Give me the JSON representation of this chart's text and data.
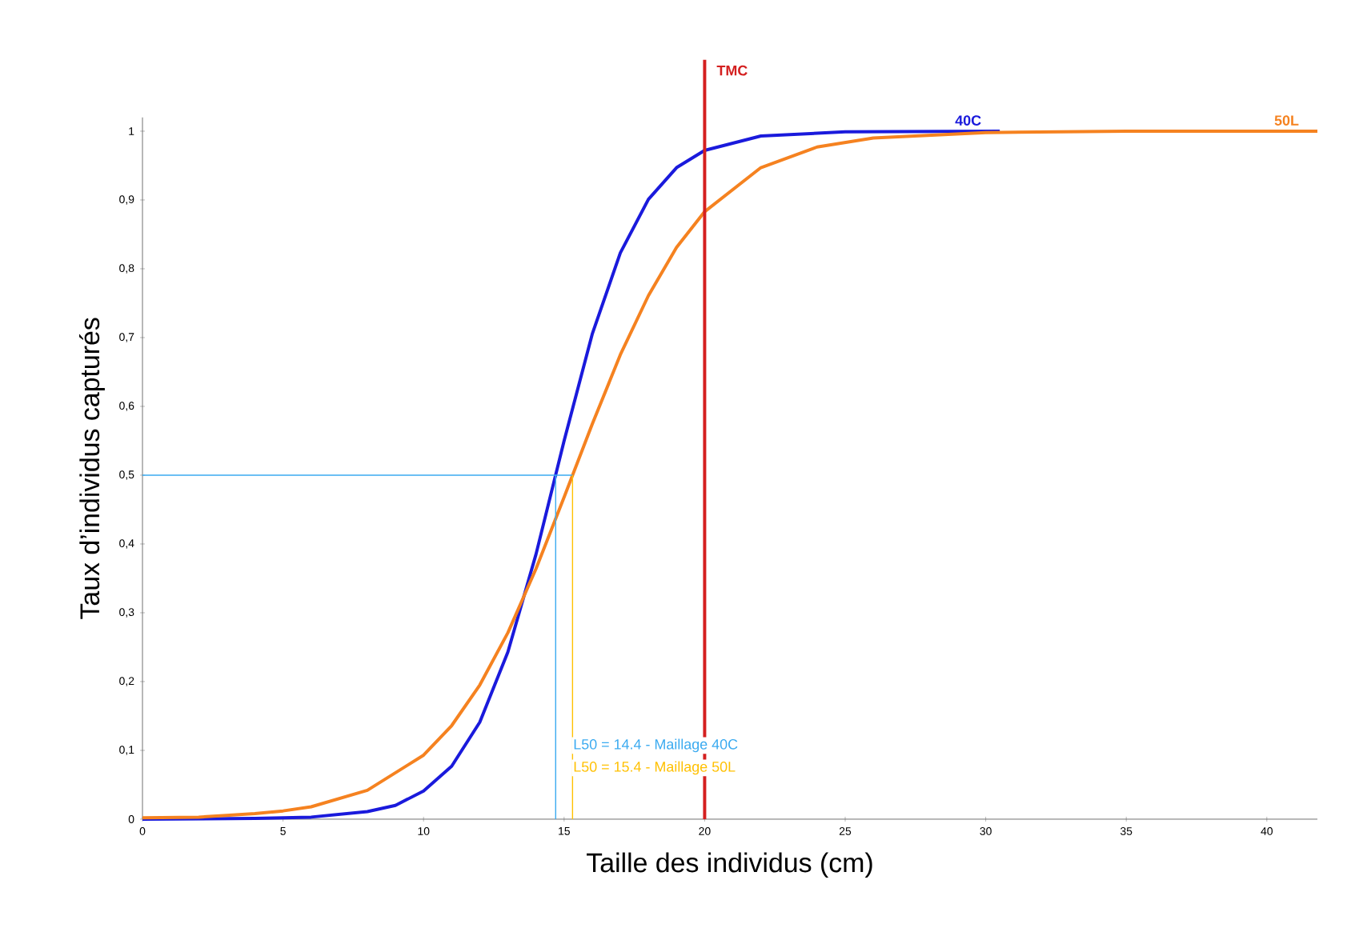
{
  "chart_data": {
    "type": "line",
    "xlabel": "Taille des individus (cm)",
    "ylabel": "Taux d’individus capturés",
    "xlim": [
      0,
      41.8
    ],
    "ylim": [
      0,
      1.02
    ],
    "xticks": [
      0,
      5,
      10,
      15,
      20,
      25,
      30,
      35,
      40
    ],
    "yticks": [
      0,
      {
        "value": 0.1,
        "label": "0,1"
      },
      {
        "value": 0.2,
        "label": "0,2"
      },
      {
        "value": 0.3,
        "label": "0,3"
      },
      {
        "value": 0.4,
        "label": "0,4"
      },
      {
        "value": 0.5,
        "label": "0,5"
      },
      {
        "value": 0.6,
        "label": "0,6"
      },
      {
        "value": 0.7,
        "label": "0,7"
      },
      {
        "value": 0.8,
        "label": "0,8"
      },
      {
        "value": 0.9,
        "label": "0,9"
      },
      1
    ],
    "marker": "none",
    "line_style": "solid",
    "series": [
      {
        "name": "40C",
        "color": "#1a1adc",
        "x": [
          0,
          4,
          6,
          8,
          9,
          10,
          11,
          12,
          13,
          14,
          15,
          16,
          17,
          18,
          19,
          20,
          22,
          25,
          30.5
        ],
        "values": [
          0,
          0.001,
          0.003,
          0.011,
          0.02,
          0.041,
          0.077,
          0.141,
          0.243,
          0.385,
          0.55,
          0.705,
          0.823,
          0.901,
          0.947,
          0.972,
          0.993,
          0.999,
          1
        ]
      },
      {
        "name": "50L",
        "color": "#f58220",
        "x": [
          0,
          2,
          4,
          5,
          6,
          8,
          10,
          11,
          12,
          13,
          14,
          15,
          16,
          17,
          18,
          19,
          20,
          22,
          24,
          26,
          30,
          35,
          41.8
        ],
        "values": [
          0.002,
          0.003,
          0.008,
          0.012,
          0.018,
          0.042,
          0.093,
          0.136,
          0.195,
          0.271,
          0.364,
          0.468,
          0.574,
          0.675,
          0.761,
          0.831,
          0.883,
          0.947,
          0.977,
          0.99,
          0.998,
          1,
          1
        ]
      },
      {
        "color": "#3aaaf0",
        "x": [
          0,
          15.3
        ],
        "values": [
          0.5,
          0.5
        ]
      },
      {
        "color": "#3aaaf0",
        "x": [
          14.7,
          14.7
        ],
        "values": [
          0,
          0.5
        ]
      },
      {
        "color": "#ffc000",
        "x": [
          15.3,
          15.3
        ],
        "values": [
          0,
          0.5
        ]
      }
    ],
    "ref_lines": [
      {
        "axis": "x",
        "value": 20,
        "label": "TMC",
        "color": "#d42020"
      }
    ],
    "annotations": [
      "L50 =  14.4   - Maillage 40C",
      "L50 =  15.4   - Maillage 50L"
    ]
  }
}
